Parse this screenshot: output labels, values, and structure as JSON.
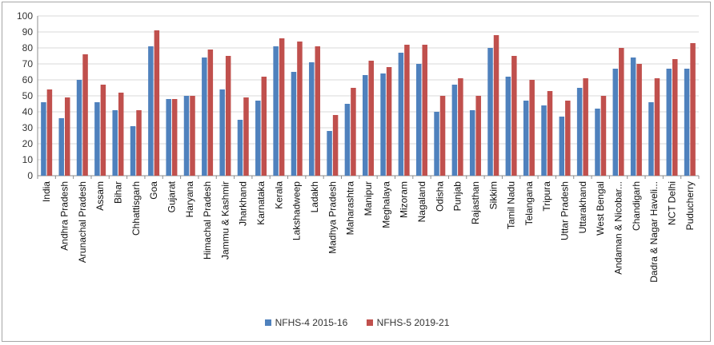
{
  "chart_data": {
    "type": "bar",
    "title": "",
    "xlabel": "",
    "ylabel": "",
    "ylim": [
      0,
      100
    ],
    "yticks": [
      0,
      10,
      20,
      30,
      40,
      50,
      60,
      70,
      80,
      90,
      100
    ],
    "grid": true,
    "legend_position": "bottom",
    "categories": [
      "India",
      "Andhra Pradesh",
      "Arunachal Pradesh",
      "Assam",
      "Bihar",
      "Chhattisgarh",
      "Goa",
      "Gujarat",
      "Haryana",
      "Himachal Pradesh",
      "Jammu & Kashmir",
      "Jharkhand",
      "Karnataka",
      "Kerala",
      "Lakshadweep",
      "Ladakh",
      "Madhya Pradesh",
      "Maharashtra",
      "Manipur",
      "Meghalaya",
      "Mizoram",
      "Nagaland",
      "Odisha",
      "Punjab",
      "Rajasthan",
      "Sikkim",
      "Tamil Nadu",
      "Telangana",
      "Tripura",
      "Uttar Pradesh",
      "Uttarakhand",
      "West Bengal",
      "Andaman & Nicobar...",
      "Chandigarh",
      "Dadra & Nagar Haveli...",
      "NCT Delhi",
      "Puducherry"
    ],
    "series": [
      {
        "name": "NFHS-4 2015-16",
        "color": "#4f81bd",
        "values": [
          46,
          36,
          60,
          46,
          41,
          31,
          81,
          48,
          50,
          74,
          54,
          35,
          47,
          81,
          65,
          71,
          28,
          45,
          63,
          64,
          77,
          70,
          40,
          57,
          41,
          80,
          62,
          47,
          44,
          37,
          55,
          42,
          67,
          74,
          46,
          67,
          67
        ]
      },
      {
        "name": "NFHS-5 2019-21",
        "color": "#c0504d",
        "values": [
          54,
          49,
          76,
          57,
          52,
          41,
          91,
          48,
          50,
          79,
          75,
          49,
          62,
          86,
          84,
          81,
          38,
          55,
          72,
          68,
          82,
          82,
          50,
          61,
          50,
          88,
          75,
          60,
          53,
          47,
          61,
          50,
          80,
          70,
          61,
          73,
          83
        ]
      }
    ]
  }
}
